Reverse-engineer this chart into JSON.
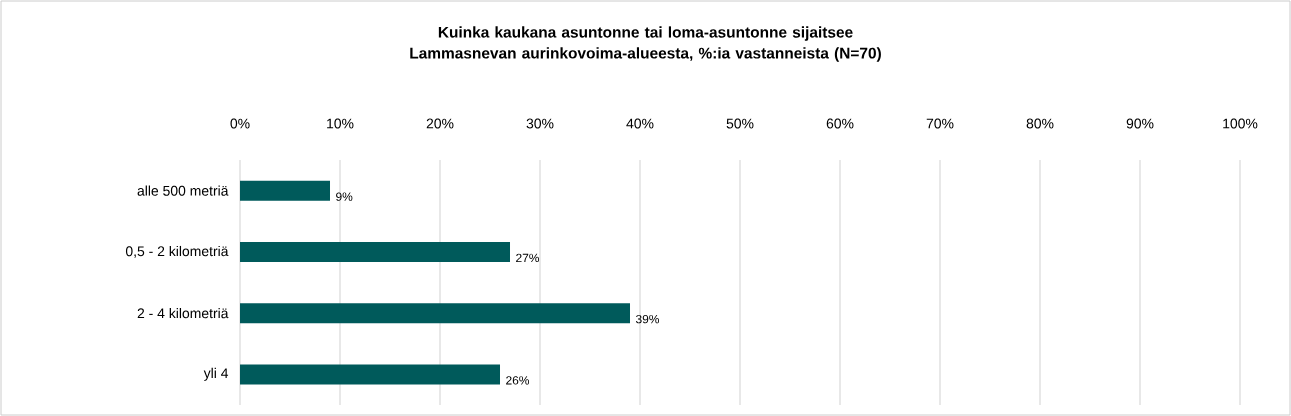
{
  "chart_data": {
    "type": "bar",
    "orientation": "horizontal",
    "title": "Kuinka kaukana asuntonne tai loma-asuntonne sijaitsee Lammasnevan aurinkovoima-alueesta, %:ia vastanneista (N=70)",
    "categories": [
      "alle 500 metriä",
      "0,5 - 2 kilometriä",
      "2 - 4 kilometriä",
      "yli 4"
    ],
    "values": [
      9,
      27,
      39,
      26
    ],
    "value_labels": [
      "9%",
      "27%",
      "39%",
      "26%"
    ],
    "color": "#005a5b",
    "xlim": [
      0,
      100
    ],
    "xticks": [
      {
        "value": 0,
        "label": "0%"
      },
      {
        "value": 10,
        "label": "10%"
      },
      {
        "value": 20,
        "label": "20%"
      },
      {
        "value": 30,
        "label": "30%"
      },
      {
        "value": 40,
        "label": "40%"
      },
      {
        "value": 50,
        "label": "50%"
      },
      {
        "value": 60,
        "label": "60%"
      },
      {
        "value": 70,
        "label": "70%"
      },
      {
        "value": 80,
        "label": "80%"
      },
      {
        "value": 90,
        "label": "90%"
      },
      {
        "value": 100,
        "label": "100%"
      }
    ],
    "grid": "x"
  }
}
